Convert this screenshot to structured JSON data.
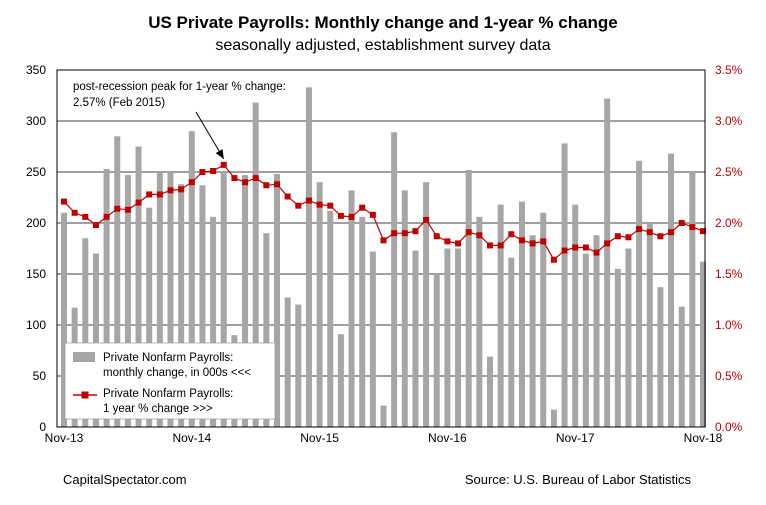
{
  "chart_data": {
    "type": "bar+line",
    "title": "US Private Payrolls: Monthly change and 1-year % change",
    "subtitle": "seasonally adjusted, establishment survey data",
    "x_tick_labels": [
      "Nov-13",
      "Nov-14",
      "Nov-15",
      "Nov-16",
      "Nov-17",
      "Nov-18"
    ],
    "left_axis": {
      "ylim": [
        0,
        350
      ],
      "ticks": [
        "0",
        "50",
        "100",
        "150",
        "200",
        "250",
        "300",
        "350"
      ]
    },
    "right_axis": {
      "ylim": [
        0,
        3.5
      ],
      "ticks": [
        "0.0%",
        "0.5%",
        "1.0%",
        "1.5%",
        "2.0%",
        "2.5%",
        "3.0%",
        "3.5%"
      ]
    },
    "grid": "horizontal",
    "series": [
      {
        "name": "Private Nonfarm Payrolls: monthly change, in 000s <<<",
        "type": "bar",
        "axis": "left",
        "color": "#a6a6a6",
        "values": [
          210,
          117,
          185,
          170,
          253,
          285,
          247,
          275,
          215,
          250,
          250,
          238,
          290,
          237,
          206,
          250,
          90,
          247,
          318,
          190,
          248,
          127,
          120,
          333,
          240,
          212,
          91,
          232,
          206,
          172,
          21,
          289,
          232,
          173,
          240,
          150,
          175,
          175,
          252,
          206,
          69,
          218,
          166,
          221,
          188,
          210,
          17,
          278,
          218,
          170,
          188,
          322,
          155,
          175,
          261,
          200,
          137,
          268,
          118,
          251,
          162
        ]
      },
      {
        "name": "Private Nonfarm Payrolls: 1 year % change >>>",
        "type": "line",
        "axis": "right",
        "color": "#c00000",
        "values": [
          2.21,
          2.1,
          2.06,
          1.98,
          2.06,
          2.14,
          2.13,
          2.2,
          2.28,
          2.28,
          2.32,
          2.33,
          2.4,
          2.5,
          2.51,
          2.57,
          2.44,
          2.4,
          2.44,
          2.37,
          2.38,
          2.26,
          2.17,
          2.22,
          2.18,
          2.17,
          2.07,
          2.06,
          2.15,
          2.08,
          1.83,
          1.9,
          1.9,
          1.92,
          2.03,
          1.87,
          1.82,
          1.8,
          1.91,
          1.88,
          1.78,
          1.78,
          1.89,
          1.83,
          1.8,
          1.82,
          1.64,
          1.73,
          1.76,
          1.76,
          1.71,
          1.8,
          1.87,
          1.86,
          1.94,
          1.91,
          1.87,
          1.91,
          2.0,
          1.96,
          1.92
        ]
      }
    ],
    "annotation": {
      "line1": "post-recession peak for 1-year % change:",
      "line2": "2.57% (Feb 2015)"
    }
  },
  "footer": {
    "left": "CapitalSpectator.com",
    "right": "Source: U.S. Bureau of Labor Statistics"
  },
  "legend": {
    "bar_line1": "Private Nonfarm Payrolls:",
    "bar_line2": "monthly change, in 000s <<<",
    "line_line1": "Private Nonfarm Payrolls:",
    "line_line2": "1 year % change >>>"
  }
}
